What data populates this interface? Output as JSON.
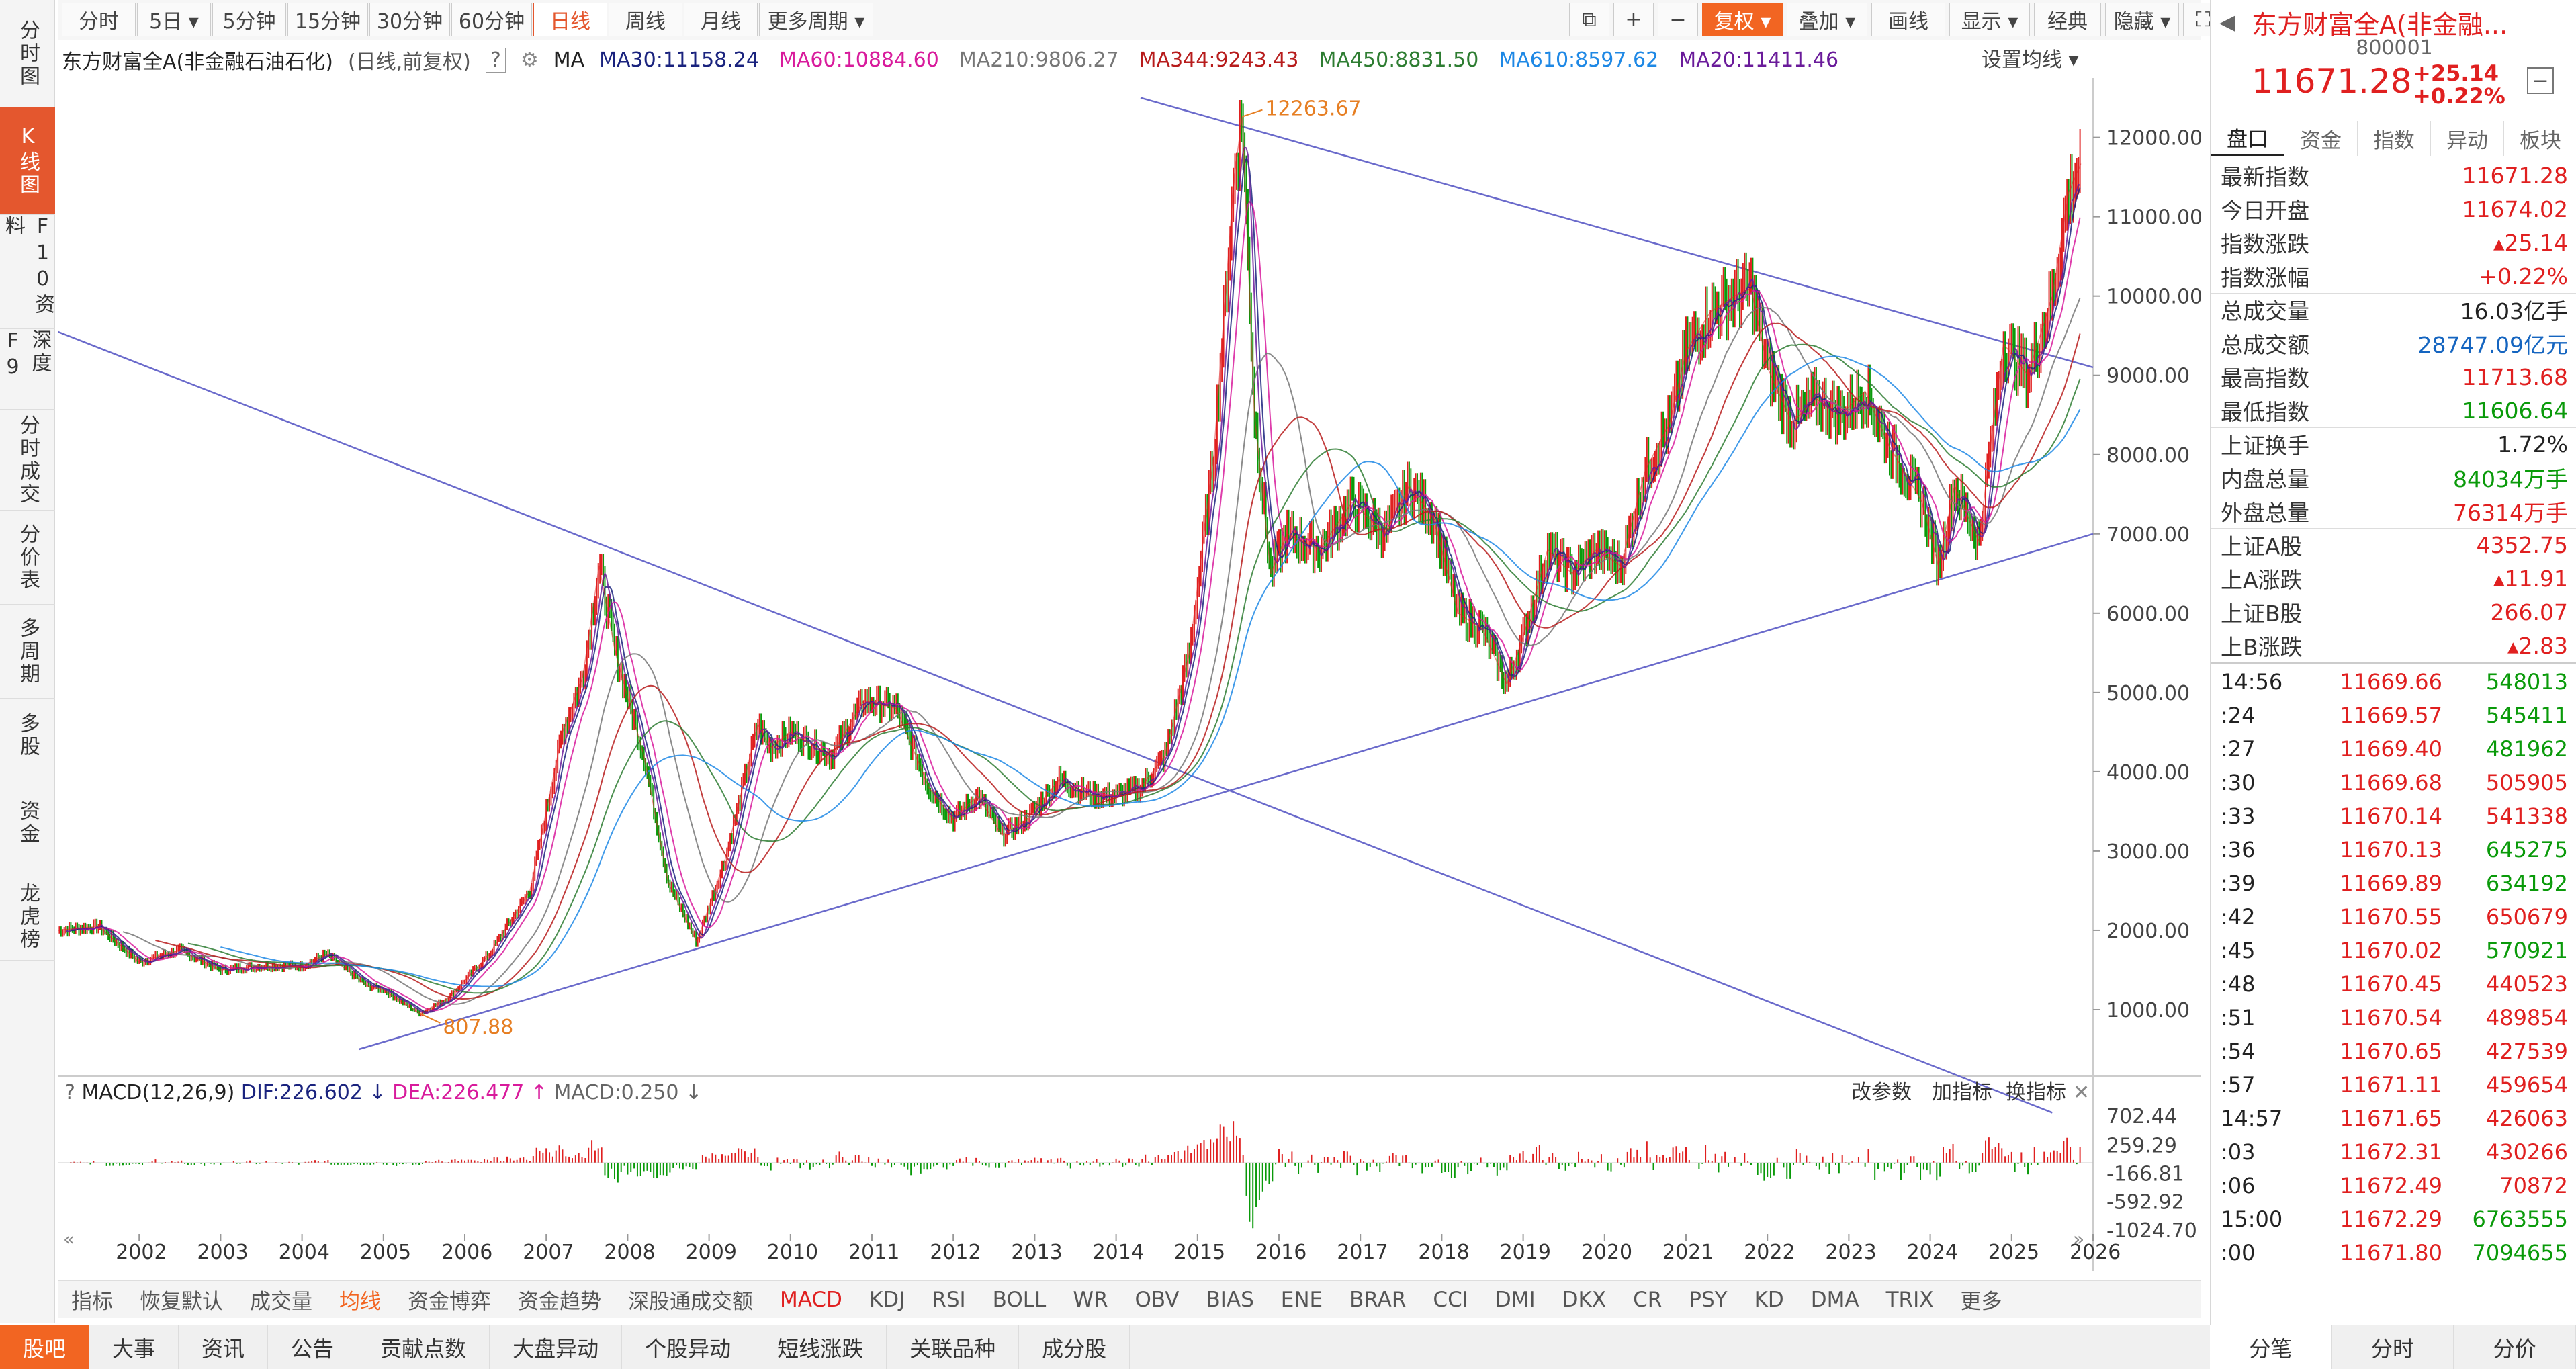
{
  "left_tabs": [
    {
      "label": "分时图"
    },
    {
      "label": "K线图"
    },
    {
      "label": "F10资料"
    },
    {
      "label": "深度F9"
    },
    {
      "label": "分时成交"
    },
    {
      "label": "分价表"
    },
    {
      "label": "多周期"
    },
    {
      "label": "多股"
    },
    {
      "label": "资金"
    },
    {
      "label": "龙虎榜"
    }
  ],
  "toolbar": {
    "periods": [
      "分时",
      "5日 ▾",
      "5分钟",
      "15分钟",
      "30分钟",
      "60分钟",
      "日线",
      "周线",
      "月线",
      "更多周期 ▾"
    ],
    "active_period": "日线",
    "right_buttons": [
      "⧉",
      "+",
      "−",
      "复权 ▾",
      "叠加 ▾",
      "画线",
      "显示 ▾",
      "经典",
      "隐藏 ▾",
      "⛶"
    ]
  },
  "legend": {
    "title": "东方财富全A(非金融石油石化)",
    "mode": "(日线,前复权)",
    "help": "?",
    "ma_label": "MA",
    "ma": [
      {
        "text": "MA30:11158.24",
        "color": "#1a237e"
      },
      {
        "text": "MA60:10884.60",
        "color": "#d81b9c"
      },
      {
        "text": "MA210:9806.27",
        "color": "#777777"
      },
      {
        "text": "MA344:9243.43",
        "color": "#b71c1c"
      },
      {
        "text": "MA450:8831.50",
        "color": "#2e7d32"
      },
      {
        "text": "MA610:8597.62",
        "color": "#1e88e5"
      },
      {
        "text": "MA20:11411.46",
        "color": "#6a1b9a"
      }
    ],
    "settings": "设置均线 ▾"
  },
  "price_axis": [
    "12000.00",
    "11000.00",
    "10000.00",
    "9000.00",
    "8000.00",
    "7000.00",
    "6000.00",
    "5000.00",
    "4000.00",
    "3000.00",
    "2000.00",
    "1000.00"
  ],
  "annotations": {
    "high": "12263.67",
    "low": "807.88"
  },
  "macd_legend": {
    "help": "?",
    "name": "MACD(12,26,9)",
    "dif": "DIF:226.602 ↓",
    "dea": "DEA:226.477 ↑",
    "macd": "MACD:0.250 ↓",
    "actions": [
      "改参数",
      "加指标",
      "换指标"
    ],
    "close": "✕"
  },
  "macd_axis": [
    "702.44",
    "259.29",
    "-166.81",
    "-592.92",
    "-1024.70"
  ],
  "year_axis": [
    "2002",
    "2003",
    "2004",
    "2005",
    "2006",
    "2007",
    "2008",
    "2009",
    "2010",
    "2011",
    "2012",
    "2013",
    "2014",
    "2015",
    "2016",
    "2017",
    "2018",
    "2019",
    "2020",
    "2021",
    "2022",
    "2023",
    "2024",
    "2025",
    "2026"
  ],
  "chart_data": {
    "type": "line",
    "title": "东方财富全A(非金融石油石化) 日线 前复权",
    "x": [
      2001.0,
      2001.5,
      2002.0,
      2002.5,
      2003.0,
      2003.5,
      2004.0,
      2004.3,
      2004.8,
      2005.0,
      2005.45,
      2005.8,
      2006.3,
      2006.8,
      2007.2,
      2007.45,
      2007.65,
      2007.85,
      2008.2,
      2008.5,
      2008.85,
      2009.2,
      2009.6,
      2009.75,
      2010.0,
      2010.5,
      2010.9,
      2011.3,
      2011.7,
      2012.0,
      2012.3,
      2012.6,
      2012.9,
      2013.3,
      2013.7,
      2014.0,
      2014.3,
      2014.6,
      2014.9,
      2015.2,
      2015.45,
      2015.55,
      2015.7,
      2015.9,
      2016.1,
      2016.5,
      2016.9,
      2017.3,
      2017.6,
      2017.9,
      2018.2,
      2018.5,
      2018.8,
      2019.0,
      2019.3,
      2019.6,
      2019.9,
      2020.2,
      2020.5,
      2020.8,
      2021.0,
      2021.3,
      2021.6,
      2021.8,
      2022.0,
      2022.3,
      2022.6,
      2022.9,
      2023.2,
      2023.5,
      2023.9,
      2024.1,
      2024.3,
      2024.6,
      2024.75,
      2024.9,
      2025.2,
      2025.5,
      2025.7,
      2025.85
    ],
    "y": [
      2000,
      2050,
      1600,
      1750,
      1500,
      1550,
      1550,
      1700,
      1300,
      1250,
      950,
      1150,
      1700,
      2500,
      4500,
      5200,
      6600,
      5500,
      4200,
      2600,
      1850,
      2900,
      4600,
      4300,
      4500,
      4200,
      4900,
      4800,
      3800,
      3400,
      3700,
      3200,
      3400,
      3900,
      3700,
      3700,
      3800,
      4200,
      5500,
      8000,
      11500,
      12263,
      8500,
      6500,
      7000,
      6800,
      7400,
      7000,
      7600,
      7200,
      6000,
      5800,
      5100,
      5700,
      6800,
      6500,
      6800,
      6600,
      7800,
      8400,
      9300,
      9800,
      10000,
      10100,
      9100,
      8400,
      8700,
      8500,
      8800,
      8100,
      7400,
      6600,
      7600,
      6900,
      8200,
      9400,
      9000,
      10000,
      11300,
      11671
    ],
    "ylim": [
      500,
      12700
    ],
    "xlim": [
      2001.0,
      2026.0
    ],
    "series_ma": [
      "MA30",
      "MA60",
      "MA210",
      "MA344",
      "MA450",
      "MA610",
      "MA20"
    ]
  },
  "right_panel": {
    "title": "东方财富全A(非金融...",
    "code": "800001",
    "price": "11671.28",
    "change": "+25.14",
    "change_pct": "+0.22%",
    "tabs": [
      "盘口",
      "资金",
      "指数",
      "异动",
      "板块"
    ],
    "stats": [
      {
        "label": "最新指数",
        "value": "11671.28",
        "cls": "red"
      },
      {
        "label": "今日开盘",
        "value": "11674.02",
        "cls": "red"
      },
      {
        "label": "指数涨跌",
        "value": "▴25.14",
        "cls": "red"
      },
      {
        "label": "指数涨幅",
        "value": "+0.22%",
        "cls": "red"
      },
      {
        "label": "总成交量",
        "value": "16.03亿手",
        "cls": ""
      },
      {
        "label": "总成交额",
        "value": "28747.09亿元",
        "cls": "blue"
      },
      {
        "label": "最高指数",
        "value": "11713.68",
        "cls": "red"
      },
      {
        "label": "最低指数",
        "value": "11606.64",
        "cls": "green"
      },
      {
        "label": "上证换手",
        "value": "1.72%",
        "cls": ""
      },
      {
        "label": "内盘总量",
        "value": "84034万手",
        "cls": "green"
      },
      {
        "label": "外盘总量",
        "value": "76314万手",
        "cls": "red"
      },
      {
        "label": "上证A股",
        "value": "4352.75",
        "cls": "red"
      },
      {
        "label": "上A涨跌",
        "value": "▴11.91",
        "cls": "red"
      },
      {
        "label": "上证B股",
        "value": "266.07",
        "cls": "red"
      },
      {
        "label": "上B涨跌",
        "value": "▴2.83",
        "cls": "red"
      }
    ],
    "ticks": [
      {
        "t": "14:56",
        "p": "11669.66",
        "v": "548013",
        "vc": "green"
      },
      {
        "t": ":24",
        "p": "11669.57",
        "v": "545411",
        "vc": "green"
      },
      {
        "t": ":27",
        "p": "11669.40",
        "v": "481962",
        "vc": "green"
      },
      {
        "t": ":30",
        "p": "11669.68",
        "v": "505905",
        "vc": "red"
      },
      {
        "t": ":33",
        "p": "11670.14",
        "v": "541338",
        "vc": "red"
      },
      {
        "t": ":36",
        "p": "11670.13",
        "v": "645275",
        "vc": "green"
      },
      {
        "t": ":39",
        "p": "11669.89",
        "v": "634192",
        "vc": "green"
      },
      {
        "t": ":42",
        "p": "11670.55",
        "v": "650679",
        "vc": "red"
      },
      {
        "t": ":45",
        "p": "11670.02",
        "v": "570921",
        "vc": "green"
      },
      {
        "t": ":48",
        "p": "11670.45",
        "v": "440523",
        "vc": "red"
      },
      {
        "t": ":51",
        "p": "11670.54",
        "v": "489854",
        "vc": "red"
      },
      {
        "t": ":54",
        "p": "11670.65",
        "v": "427539",
        "vc": "red"
      },
      {
        "t": ":57",
        "p": "11671.11",
        "v": "459654",
        "vc": "red"
      },
      {
        "t": "14:57",
        "p": "11671.65",
        "v": "426063",
        "vc": "red"
      },
      {
        "t": ":03",
        "p": "11672.31",
        "v": "430266",
        "vc": "red"
      },
      {
        "t": ":06",
        "p": "11672.49",
        "v": "70872",
        "vc": "red"
      },
      {
        "t": "15:00",
        "p": "11672.29",
        "v": "6763555",
        "vc": "green"
      },
      {
        "t": ":00",
        "p": "11671.80",
        "v": "7094655",
        "vc": "green"
      }
    ]
  },
  "indicator_tabs": [
    "指标",
    "恢复默认",
    "成交量",
    "均线",
    "资金博弈",
    "资金趋势",
    "深股通成交额",
    "MACD",
    "KDJ",
    "RSI",
    "BOLL",
    "WR",
    "OBV",
    "BIAS",
    "ENE",
    "BRAR",
    "CCI",
    "DMI",
    "DKX",
    "CR",
    "PSY",
    "KD",
    "DMA",
    "TRIX",
    "更多"
  ],
  "bottom_tabs": [
    "股吧",
    "大事",
    "资讯",
    "公告",
    "贡献点数",
    "大盘异动",
    "个股异动",
    "短线涨跌",
    "关联品种",
    "成分股"
  ],
  "right_bottom_tabs": [
    "分笔",
    "分时",
    "分价"
  ]
}
